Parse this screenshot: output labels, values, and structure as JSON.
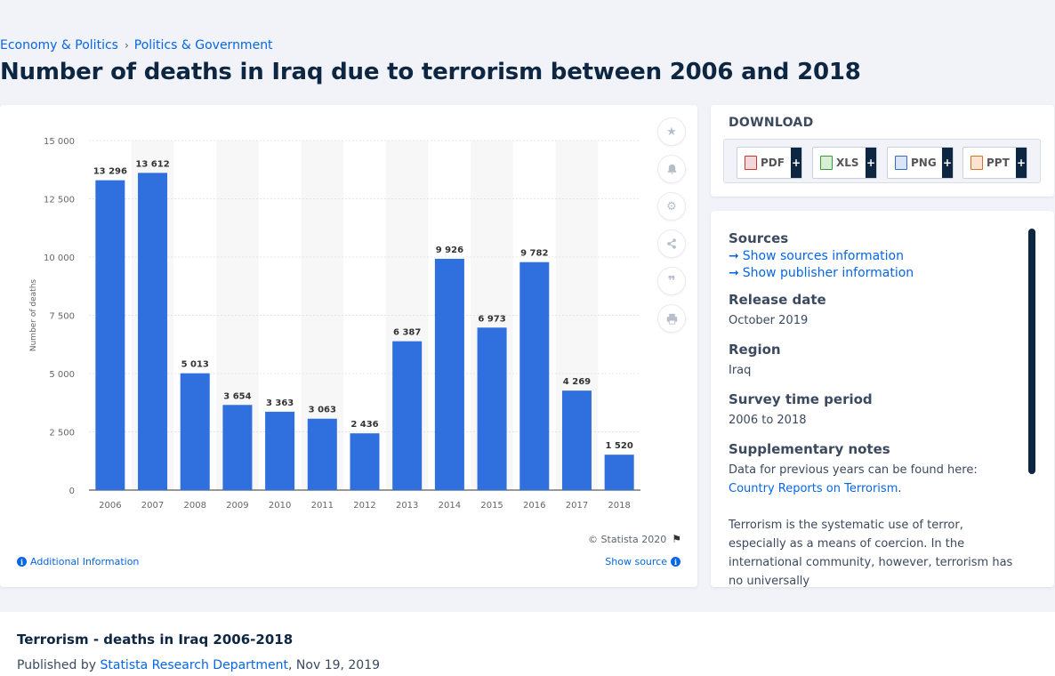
{
  "breadcrumb": {
    "item1": "Economy & Politics",
    "separator": "›",
    "item2": "Politics & Government"
  },
  "page_title": "Number of deaths in Iraq due to terrorism between 2006 and 2018",
  "chart_data": {
    "type": "bar",
    "title": "",
    "xlabel": "",
    "ylabel": "Number of deaths",
    "categories": [
      "2006",
      "2007",
      "2008",
      "2009",
      "2010",
      "2011",
      "2012",
      "2013",
      "2014",
      "2015",
      "2016",
      "2017",
      "2018"
    ],
    "values": [
      13296,
      13612,
      5013,
      3654,
      3363,
      3063,
      2436,
      6387,
      9926,
      6973,
      9782,
      4269,
      1520
    ],
    "value_labels": [
      "13 296",
      "13 612",
      "5 013",
      "3 654",
      "3 363",
      "3 063",
      "2 436",
      "6 387",
      "9 926",
      "6 973",
      "9 782",
      "4 269",
      "1 520"
    ],
    "yticks": [
      0,
      2500,
      5000,
      7500,
      10000,
      12500,
      15000
    ],
    "ytick_labels": [
      "0",
      "2 500",
      "5 000",
      "7 500",
      "10 000",
      "12 500",
      "15 000"
    ],
    "ylim": [
      0,
      15000
    ],
    "bar_color": "#2f6fde",
    "grid": true,
    "legend": "none"
  },
  "tools": {
    "star": "star-icon",
    "bell": "bell-icon",
    "gear": "gear-icon",
    "share": "share-icon",
    "quote": "quote-icon",
    "print": "print-icon"
  },
  "chart_footer": {
    "copyright": "© Statista 2020",
    "additional_info": "Additional Information",
    "show_source": "Show source"
  },
  "download": {
    "title": "DOWNLOAD",
    "buttons": [
      {
        "label": "PDF",
        "plus": "+"
      },
      {
        "label": "XLS",
        "plus": "+"
      },
      {
        "label": "PNG",
        "plus": "+"
      },
      {
        "label": "PPT",
        "plus": "+"
      }
    ]
  },
  "meta": {
    "sources_heading": "Sources",
    "show_sources": "Show sources information",
    "show_publisher": "Show publisher information",
    "release_heading": "Release date",
    "release_value": "October 2019",
    "region_heading": "Region",
    "region_value": "Iraq",
    "survey_heading": "Survey time period",
    "survey_value": "2006 to 2018",
    "supp_heading": "Supplementary notes",
    "supp_text": "Data for previous years can be found here: ",
    "supp_link": "Country Reports on Terrorism",
    "supp_end": ".",
    "supp_para2": "Terrorism is the systematic use of terror, especially as a means of coercion. In the international community, however, terrorism has no universally"
  },
  "bottom": {
    "title": "Terrorism - deaths in Iraq 2006-2018",
    "published_by": "Published by ",
    "publisher": "Statista Research Department",
    "date": ", Nov 19, 2019"
  }
}
